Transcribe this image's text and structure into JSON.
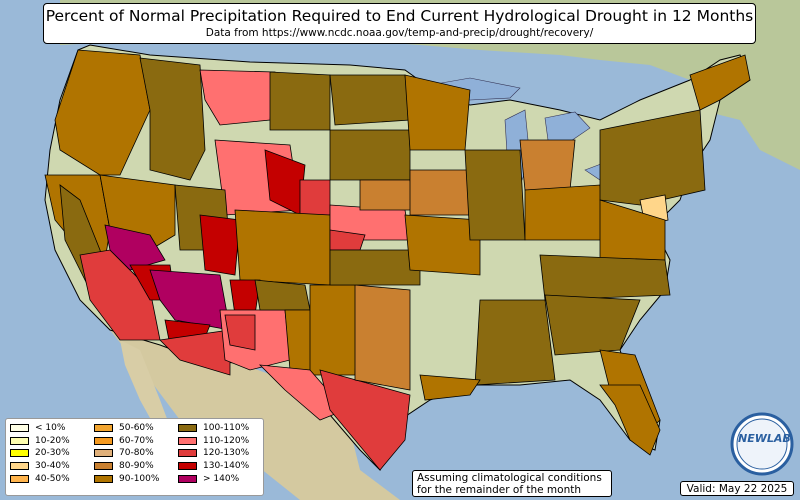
{
  "title": "Percent of Normal Precipitation Required to End Current Hydrological Drought in 12 Months",
  "subtitle": "Data from https://www.ncdc.noaa.gov/temp-and-precip/drought/recovery/",
  "legend": {
    "columns": [
      [
        {
          "label": "< 10%",
          "color": "#ffffe6"
        },
        {
          "label": "10-20%",
          "color": "#ffffb0"
        },
        {
          "label": "20-30%",
          "color": "#ffff00"
        },
        {
          "label": "30-40%",
          "color": "#ffd68a"
        },
        {
          "label": "40-50%",
          "color": "#ffb44d"
        }
      ],
      [
        {
          "label": "50-60%",
          "color": "#f2a530"
        },
        {
          "label": "60-70%",
          "color": "#f59a20"
        },
        {
          "label": "70-80%",
          "color": "#e0b07a"
        },
        {
          "label": "80-90%",
          "color": "#c98030"
        },
        {
          "label": "90-100%",
          "color": "#b07400"
        }
      ],
      [
        {
          "label": "100-110%",
          "color": "#8a6a10"
        },
        {
          "label": "110-120%",
          "color": "#ff7070"
        },
        {
          "label": "120-130%",
          "color": "#e03c3c"
        },
        {
          "label": "130-140%",
          "color": "#c40000"
        },
        {
          "label": "> 140%",
          "color": "#b00060"
        }
      ]
    ]
  },
  "note": [
    "Assuming climatological conditions",
    "for the remainder of the month"
  ],
  "valid": "Valid: May 22 2025",
  "logo_text": "NEWLAB",
  "colors": {
    "ocean": "#9ab9d8",
    "land": "#c8d4a8",
    "land_dark": "#a9bb86",
    "lakes": "#8fb0d8",
    "border": "#000000"
  }
}
